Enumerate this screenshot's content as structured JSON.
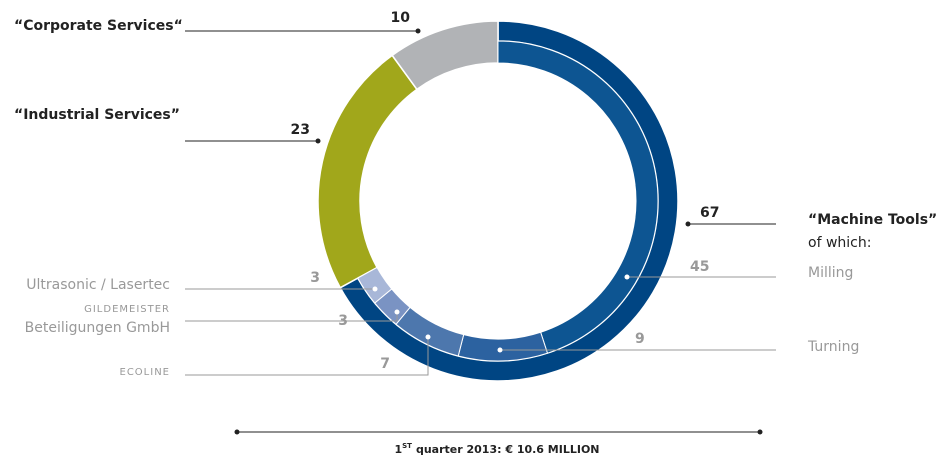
{
  "chart_data": {
    "type": "donut",
    "title_parts": [
      "1",
      "ST",
      "quarter 2013: € 10.6 MILLION"
    ],
    "segments": [
      {
        "name": "“Machine Tools”",
        "value": 67,
        "color": "#004583"
      },
      {
        "name": "“Industrial Services”",
        "value": 23,
        "color": "#a1a71b"
      },
      {
        "name": "“Corporate Services“",
        "value": 10,
        "color": "#b1b3b6"
      }
    ],
    "sub_title": "of which:",
    "subsegments": [
      {
        "name": "Milling",
        "value": 45,
        "color": "#0d5592"
      },
      {
        "name": "Turning",
        "value": 9,
        "color": "#2c62a0"
      },
      {
        "name": "ECOLINE",
        "value": 7,
        "color": "#4d77ad"
      },
      {
        "name": [
          "GILDEMEISTER",
          "Beteiligungen GmbH"
        ],
        "value": 3,
        "color": "#7a93c3"
      },
      {
        "name": "Ultrasonic / Lasertec",
        "value": 3,
        "color": "#a8b7d8"
      }
    ]
  }
}
